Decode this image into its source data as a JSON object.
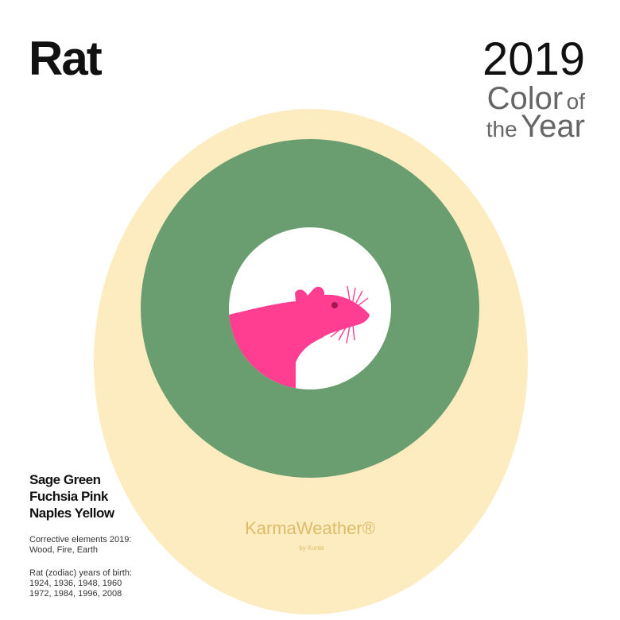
{
  "header": {
    "title": "Rat",
    "year": "2019",
    "subtitle_lines": [
      [
        "Color",
        "of"
      ],
      [
        "the",
        "Year"
      ]
    ]
  },
  "colors": [
    "Sage Green",
    "Fuchsia Pink",
    "Naples Yellow"
  ],
  "corrective": [
    "Corrective elements 2019:",
    "Wood, Fire, Earth"
  ],
  "birth_years": [
    "Rat (zodiac) years of birth:",
    "1924, 1936, 1948, 1960",
    "1972, 1984, 1996, 2008"
  ],
  "logo": {
    "name": "KarmaWeather®",
    "by": "by Konbi"
  }
}
